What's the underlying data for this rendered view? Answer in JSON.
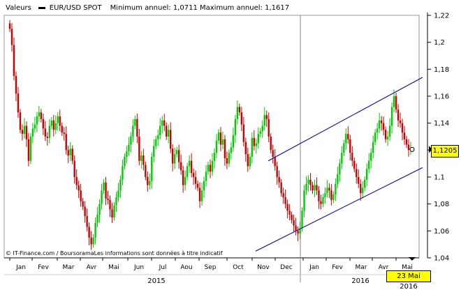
{
  "header": {
    "valeurs_label": "Valeurs",
    "instrument": "EUR/USD SPOT",
    "min_label": "Minimum annuel:",
    "min_value": "1,0711",
    "max_label": "Maximum annuel:",
    "max_value": "1,1617"
  },
  "credit": "© IT-Finance.com / BoursoramaLes informations sont données à titre indicatif",
  "last_value_tag": "1,1205",
  "date_tag": "23 Mai 2016",
  "colors": {
    "up": "#00cc00",
    "down": "#cc0000",
    "channel": "#1a1aa0",
    "tag": "#ffff00"
  },
  "chart_data": {
    "type": "candlestick",
    "title": "",
    "y_axis": {
      "ticks": [
        "1,04",
        "1,06",
        "1,08",
        "1,1",
        "1,12",
        "1,14",
        "1,16",
        "1,18",
        "1,2",
        "1,22"
      ],
      "range": [
        1.04,
        1.22
      ]
    },
    "x_axis": {
      "months": [
        "Jan",
        "Fev",
        "Mar",
        "Avr",
        "Mai",
        "Jun",
        "Jul",
        "Aou",
        "Sep",
        "Oct",
        "Nov",
        "Dec",
        "Jan",
        "Fev",
        "Mar",
        "Avr",
        "Mai"
      ],
      "years": [
        "2015",
        "2016"
      ]
    },
    "series_close": [
      1.21,
      1.198,
      1.175,
      1.162,
      1.148,
      1.135,
      1.132,
      1.138,
      1.128,
      1.112,
      1.13,
      1.136,
      1.139,
      1.145,
      1.148,
      1.143,
      1.136,
      1.13,
      1.129,
      1.138,
      1.142,
      1.135,
      1.14,
      1.145,
      1.138,
      1.133,
      1.132,
      1.12,
      1.116,
      1.121,
      1.112,
      1.1,
      1.094,
      1.09,
      1.082,
      1.078,
      1.071,
      1.063,
      1.055,
      1.05,
      1.055,
      1.066,
      1.072,
      1.08,
      1.09,
      1.096,
      1.084,
      1.083,
      1.076,
      1.07,
      1.079,
      1.085,
      1.09,
      1.098,
      1.108,
      1.115,
      1.119,
      1.124,
      1.13,
      1.138,
      1.143,
      1.13,
      1.112,
      1.116,
      1.109,
      1.1,
      1.094,
      1.097,
      1.115,
      1.123,
      1.128,
      1.131,
      1.138,
      1.142,
      1.138,
      1.13,
      1.135,
      1.121,
      1.11,
      1.117,
      1.12,
      1.111,
      1.105,
      1.094,
      1.1,
      1.108,
      1.112,
      1.103,
      1.1,
      1.095,
      1.092,
      1.082,
      1.09,
      1.097,
      1.104,
      1.109,
      1.104,
      1.112,
      1.118,
      1.127,
      1.133,
      1.124,
      1.128,
      1.114,
      1.11,
      1.118,
      1.122,
      1.131,
      1.143,
      1.152,
      1.148,
      1.139,
      1.126,
      1.117,
      1.108,
      1.115,
      1.129,
      1.123,
      1.125,
      1.132,
      1.134,
      1.138,
      1.146,
      1.143,
      1.13,
      1.12,
      1.115,
      1.108,
      1.1,
      1.096,
      1.088,
      1.085,
      1.08,
      1.075,
      1.072,
      1.068,
      1.064,
      1.06,
      1.058,
      1.062,
      1.075,
      1.09,
      1.095,
      1.098,
      1.094,
      1.09,
      1.094,
      1.09,
      1.082,
      1.08,
      1.085,
      1.088,
      1.092,
      1.09,
      1.083,
      1.087,
      1.095,
      1.102,
      1.11,
      1.118,
      1.125,
      1.132,
      1.128,
      1.118,
      1.112,
      1.106,
      1.1,
      1.095,
      1.088,
      1.092,
      1.098,
      1.106,
      1.112,
      1.118,
      1.126,
      1.133,
      1.136,
      1.142,
      1.14,
      1.135,
      1.128,
      1.13,
      1.138,
      1.152,
      1.16,
      1.15,
      1.142,
      1.14,
      1.133,
      1.128,
      1.124,
      1.12,
      1.1205
    ],
    "channel_upper": {
      "start": [
        "Nov 2015",
        1.112
      ],
      "end": [
        "Mai 2016",
        1.174
      ]
    },
    "channel_lower": {
      "start": [
        "Nov 2015",
        1.045
      ],
      "end": [
        "Mai 2016",
        1.107
      ]
    },
    "last_value": 1.1205,
    "minimum_annuel": 1.0711,
    "maximum_annuel": 1.1617,
    "grid": false,
    "legend": "top-left"
  }
}
